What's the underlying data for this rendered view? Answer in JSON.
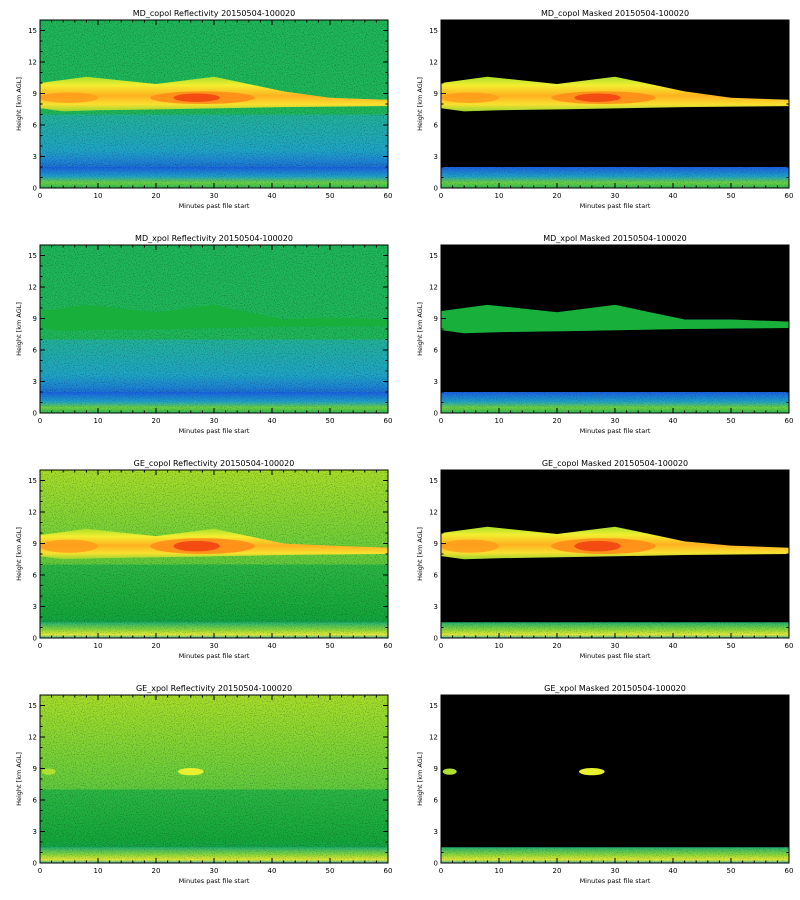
{
  "chart_data": [
    {
      "type": "heatmap",
      "title": "MD_copol Reflectivity 20150504-100020",
      "xlabel": "Minutes past file start",
      "ylabel": "Height [km AGL]",
      "xlim": [
        0,
        60
      ],
      "ylim": [
        0,
        16
      ],
      "xticks": [
        "0",
        "10",
        "20",
        "30",
        "40",
        "50",
        "60"
      ],
      "yticks": [
        "0",
        "3",
        "6",
        "9",
        "12",
        "15"
      ],
      "background": "green",
      "masked": false,
      "features": {
        "cloud_layer_km": [
          7.3,
          10.6
        ],
        "cloud_core_km": [
          8.0,
          9.2
        ],
        "noise_band_km": [
          0.8,
          7.0
        ],
        "surface_clutter_km": [
          0.0,
          2.0
        ]
      }
    },
    {
      "type": "heatmap",
      "title": "MD_copol Masked 20150504-100020",
      "xlabel": "Minutes past file start",
      "ylabel": "Height [km AGL]",
      "xlim": [
        0,
        60
      ],
      "ylim": [
        0,
        16
      ],
      "xticks": [
        "0",
        "10",
        "20",
        "30",
        "40",
        "50",
        "60"
      ],
      "yticks": [
        "0",
        "3",
        "6",
        "9",
        "12",
        "15"
      ],
      "background": "black",
      "masked": true,
      "features": {
        "cloud_layer_km": [
          7.3,
          10.6
        ],
        "cloud_core_km": [
          8.0,
          9.2
        ],
        "surface_clutter_km": [
          0.0,
          2.0
        ]
      }
    },
    {
      "type": "heatmap",
      "title": "MD_xpol Reflectivity 20150504-100020",
      "xlabel": "Minutes past file start",
      "ylabel": "Height [km AGL]",
      "xlim": [
        0,
        60
      ],
      "ylim": [
        0,
        16
      ],
      "xticks": [
        "0",
        "10",
        "20",
        "30",
        "40",
        "50",
        "60"
      ],
      "yticks": [
        "0",
        "3",
        "6",
        "9",
        "12",
        "15"
      ],
      "background": "green",
      "masked": false,
      "features": {
        "cloud_layer_km": [
          7.8,
          10.3
        ],
        "noise_band_km": [
          0.8,
          7.0
        ],
        "surface_clutter_km": [
          0.0,
          2.0
        ]
      }
    },
    {
      "type": "heatmap",
      "title": "MD_xpol Masked 20150504-100020",
      "xlabel": "Minutes past file start",
      "ylabel": "Height [km AGL]",
      "xlim": [
        0,
        60
      ],
      "ylim": [
        0,
        16
      ],
      "xticks": [
        "0",
        "10",
        "20",
        "30",
        "40",
        "50",
        "60"
      ],
      "yticks": [
        "0",
        "3",
        "6",
        "9",
        "12",
        "15"
      ],
      "background": "black",
      "masked": true,
      "features": {
        "cloud_layer_km": [
          7.6,
          10.3
        ],
        "surface_clutter_km": [
          0.0,
          2.0
        ]
      }
    },
    {
      "type": "heatmap",
      "title": "GE_copol Reflectivity 20150504-100020",
      "xlabel": "Minutes past file start",
      "ylabel": "Height [km AGL]",
      "xlim": [
        0,
        60
      ],
      "ylim": [
        0,
        16
      ],
      "xticks": [
        "0",
        "10",
        "20",
        "30",
        "40",
        "50",
        "60"
      ],
      "yticks": [
        "0",
        "3",
        "6",
        "9",
        "12",
        "15"
      ],
      "background": "yellow-green",
      "masked": false,
      "features": {
        "cloud_layer_km": [
          7.5,
          10.4
        ],
        "cloud_core_km": [
          8.0,
          9.5
        ],
        "surface_clutter_km": [
          0.0,
          1.5
        ]
      }
    },
    {
      "type": "heatmap",
      "title": "GE_copol Masked 20150504-100020",
      "xlabel": "Minutes past file start",
      "ylabel": "Height [km AGL]",
      "xlim": [
        0,
        60
      ],
      "ylim": [
        0,
        16
      ],
      "xticks": [
        "0",
        "10",
        "20",
        "30",
        "40",
        "50",
        "60"
      ],
      "yticks": [
        "0",
        "3",
        "6",
        "9",
        "12",
        "15"
      ],
      "background": "black",
      "masked": true,
      "features": {
        "cloud_layer_km": [
          7.5,
          10.6
        ],
        "cloud_core_km": [
          8.0,
          9.5
        ],
        "surface_clutter_km": [
          0.0,
          1.5
        ]
      }
    },
    {
      "type": "heatmap",
      "title": "GE_xpol Reflectivity 20150504-100020",
      "xlabel": "Minutes past file start",
      "ylabel": "Height [km AGL]",
      "xlim": [
        0,
        60
      ],
      "ylim": [
        0,
        16
      ],
      "xticks": [
        "0",
        "10",
        "20",
        "30",
        "40",
        "50",
        "60"
      ],
      "yticks": [
        "0",
        "3",
        "6",
        "9",
        "12",
        "15"
      ],
      "background": "yellow-green",
      "masked": false,
      "features": {
        "cloud_patch_km": [
          8.4,
          9.0
        ],
        "surface_clutter_km": [
          0.0,
          1.5
        ]
      }
    },
    {
      "type": "heatmap",
      "title": "GE_xpol Masked 20150504-100020",
      "xlabel": "Minutes past file start",
      "ylabel": "Height [km AGL]",
      "xlim": [
        0,
        60
      ],
      "ylim": [
        0,
        16
      ],
      "xticks": [
        "0",
        "10",
        "20",
        "30",
        "40",
        "50",
        "60"
      ],
      "yticks": [
        "0",
        "3",
        "6",
        "9",
        "12",
        "15"
      ],
      "background": "black",
      "masked": true,
      "features": {
        "cloud_patch_km": [
          8.4,
          9.0
        ],
        "surface_clutter_km": [
          0.0,
          1.5
        ]
      }
    }
  ]
}
